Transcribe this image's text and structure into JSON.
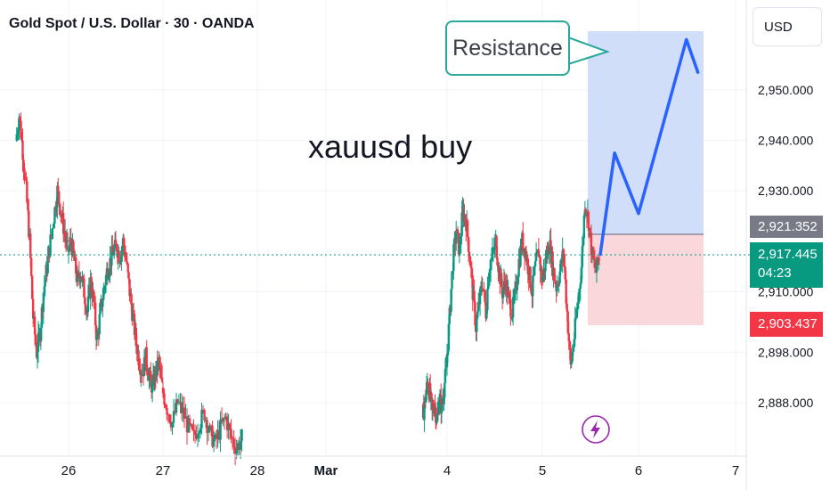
{
  "header": {
    "symbol_title": "Gold Spot / U.S. Dollar · 30 · OANDA",
    "currency_button": "USD"
  },
  "annotations": {
    "headline": "xauusd buy",
    "callout": "Resistance"
  },
  "price_tags": {
    "resistance": "2,921.352",
    "current_price": "2,917.445",
    "countdown": "04:23",
    "stop": "2,903.437"
  },
  "colors": {
    "up": "#089981",
    "down": "#f23645",
    "profit_zone": "#c9d8f8",
    "loss_zone": "#f8d0d4",
    "projection": "#2962ff",
    "callout_border": "#2aa89a",
    "current_line": "#089981"
  },
  "icons": {
    "lightning": "lightning-bolt-icon"
  },
  "chart_data": {
    "type": "candlestick",
    "title": "Gold Spot / U.S. Dollar · 30 · OANDA",
    "y_ticks": [
      "2,950.000",
      "2,940.000",
      "2,930.000",
      "2,910.000",
      "2,898.000",
      "2,888.000"
    ],
    "x_ticks": [
      "26",
      "27",
      "28",
      "Mar",
      "4",
      "5",
      "6",
      "7"
    ],
    "ylim": [
      2879,
      2963
    ],
    "grid": true,
    "current_price": 2917.445,
    "position": {
      "side": "long",
      "entry": 2917.445,
      "target": 2961.5,
      "stop": 2903.437,
      "resistance_line": 2921.352
    },
    "projection_path": [
      {
        "x": 5.6,
        "y": 2917.4
      },
      {
        "x": 5.75,
        "y": 2937.5
      },
      {
        "x": 6.0,
        "y": 2925.5
      },
      {
        "x": 6.5,
        "y": 2960.0
      },
      {
        "x": 6.62,
        "y": 2953.5
      }
    ],
    "segments": [
      {
        "x_start": 25.45,
        "x_end": 26.0,
        "values": [
          2940,
          2945,
          2938,
          2930,
          2920,
          2905,
          2898,
          2902,
          2910,
          2915,
          2920,
          2925,
          2930,
          2926,
          2922,
          2918
        ]
      },
      {
        "x_start": 26.0,
        "x_end": 27.0,
        "values": [
          2918,
          2920,
          2916,
          2912,
          2914,
          2910,
          2906,
          2912,
          2908,
          2900,
          2906,
          2910,
          2914,
          2916,
          2918,
          2919,
          2917,
          2920,
          2916,
          2910,
          2905,
          2900,
          2896,
          2894,
          2897,
          2893,
          2891,
          2894,
          2896,
          2891
        ]
      },
      {
        "x_start": 27.0,
        "x_end": 27.85,
        "values": [
          2891,
          2887,
          2884,
          2888,
          2886,
          2883,
          2881,
          2884,
          2886,
          2882,
          2880,
          2883,
          2885,
          2881,
          2879,
          2881
        ]
      },
      {
        "x_start": 3.75,
        "x_end": 4.0,
        "values": [
          2885,
          2888,
          2892,
          2890,
          2886,
          2888,
          2884,
          2889,
          2887,
          2891,
          2895
        ]
      },
      {
        "x_start": 4.0,
        "x_end": 5.0,
        "values": [
          2895,
          2905,
          2916,
          2922,
          2918,
          2926,
          2924,
          2918,
          2910,
          2903,
          2908,
          2912,
          2906,
          2915,
          2917,
          2920,
          2914,
          2910,
          2912,
          2908,
          2906,
          2910,
          2916,
          2920,
          2918,
          2914,
          2910,
          2915,
          2918,
          2912
        ]
      },
      {
        "x_start": 5.0,
        "x_end": 5.6,
        "values": [
          2912,
          2916,
          2920,
          2915,
          2911,
          2914,
          2918,
          2906,
          2895,
          2901,
          2908,
          2915,
          2928,
          2924,
          2917,
          2914,
          2917.4
        ]
      }
    ]
  }
}
